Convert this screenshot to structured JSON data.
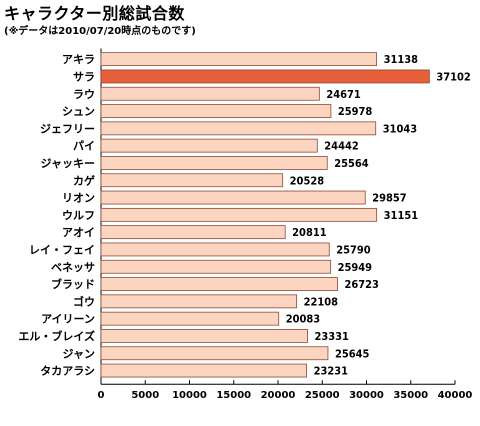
{
  "header": {
    "title": "キャラクター別総試合数",
    "subtitle": "(※データは2010/07/20時点のものです)"
  },
  "colors": {
    "bar_fill": "#fbd5c0",
    "bar_highlight": "#e8603a",
    "bar_stroke": "#8a4a35"
  },
  "chart_data": {
    "type": "bar",
    "orientation": "horizontal",
    "title": "キャラクター別総試合数",
    "subtitle": "(※データは2010/07/20時点のものです)",
    "xlabel": "",
    "ylabel": "",
    "xlim": [
      0,
      40000
    ],
    "x_ticks": [
      0,
      5000,
      10000,
      15000,
      20000,
      25000,
      30000,
      35000,
      40000
    ],
    "grid": false,
    "categories": [
      "アキラ",
      "サラ",
      "ラウ",
      "シュン",
      "ジェフリー",
      "パイ",
      "ジャッキー",
      "カゲ",
      "リオン",
      "ウルフ",
      "アオイ",
      "レイ・フェイ",
      "ベネッサ",
      "ブラッド",
      "ゴウ",
      "アイリーン",
      "エル・ブレイズ",
      "ジャン",
      "タカアラシ"
    ],
    "values": [
      31138,
      37102,
      24671,
      25978,
      31043,
      24442,
      25564,
      20528,
      29857,
      31151,
      20811,
      25790,
      25949,
      26723,
      22108,
      20083,
      23331,
      25645,
      23231
    ],
    "data_labels": [
      "31138",
      "37102",
      "24671",
      "25978",
      "31043",
      "24442",
      "25564",
      "20528",
      "29857",
      "31151",
      "20811",
      "25790",
      "25949",
      "26723",
      "22108",
      "20083",
      "23331",
      "25645",
      "23231"
    ],
    "highlight": "サラ"
  }
}
